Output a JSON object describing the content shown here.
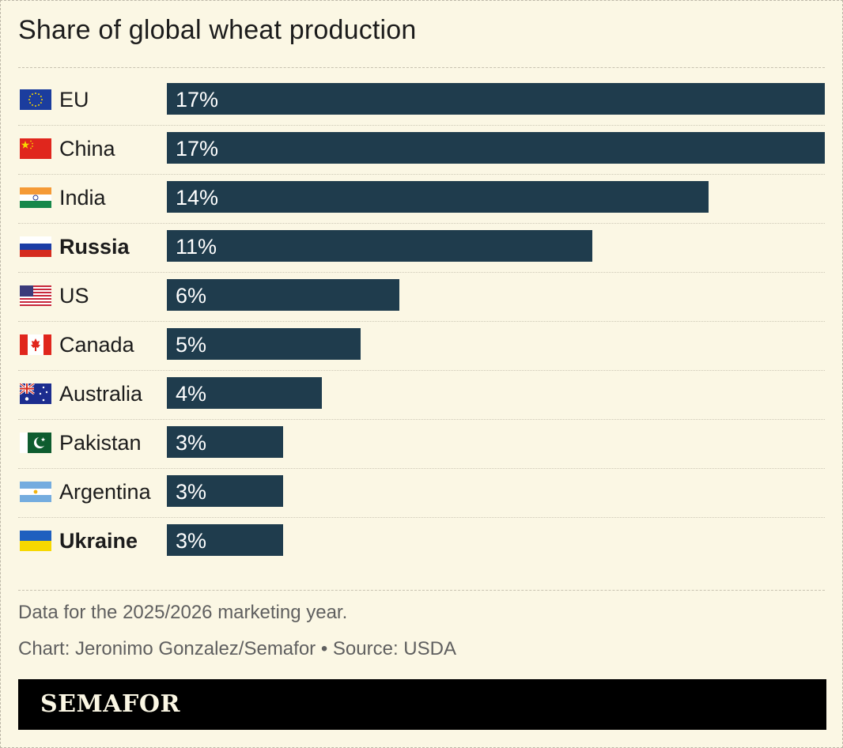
{
  "title": "Share of global wheat production",
  "chart_data": {
    "type": "bar",
    "title": "Share of global wheat production",
    "categories": [
      "EU",
      "China",
      "India",
      "Russia",
      "US",
      "Canada",
      "Australia",
      "Pakistan",
      "Argentina",
      "Ukraine"
    ],
    "values": [
      17,
      17,
      14,
      11,
      6,
      5,
      4,
      3,
      3,
      3
    ],
    "value_labels": [
      "17%",
      "17%",
      "14%",
      "11%",
      "6%",
      "5%",
      "4%",
      "3%",
      "3%",
      "3%"
    ],
    "bold_categories": [
      "Russia",
      "Ukraine"
    ],
    "bar_color": "#1f3c4d",
    "xlim": [
      0,
      17
    ],
    "xlabel": "",
    "ylabel": "",
    "grid": false
  },
  "flags": [
    "eu",
    "china",
    "india",
    "russia",
    "us",
    "canada",
    "australia",
    "pakistan",
    "argentina",
    "ukraine"
  ],
  "notes": {
    "data_note": "Data for the 2025/2026 marketing year.",
    "credit": "Chart: Jeronimo Gonzalez/Semafor • Source: USDA"
  },
  "brand": "SEMAFOR",
  "colors": {
    "background": "#fbf7e4",
    "bar": "#1f3c4d",
    "footer": "#000000"
  }
}
